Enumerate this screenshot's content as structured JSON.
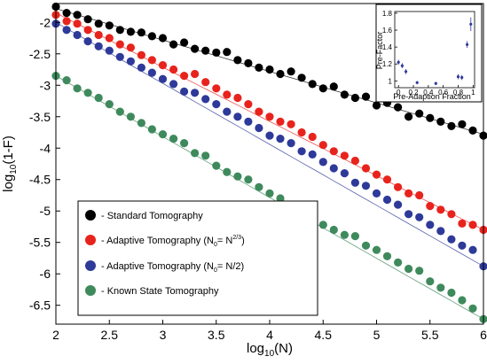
{
  "chart_data": [
    {
      "type": "scatter",
      "xlabel": "log10(N)",
      "ylabel": "log10(1-F)",
      "xlim": [
        2,
        6
      ],
      "ylim": [
        -6.8,
        -1.7
      ],
      "xticks": [
        "2",
        "2.5",
        "3",
        "3.5",
        "4",
        "4.5",
        "5",
        "5.5",
        "6"
      ],
      "yticks": [
        "-2",
        "-2.5",
        "-3",
        "-3.5",
        "-4",
        "-4.5",
        "-5",
        "-5.5",
        "-6",
        "-6.5"
      ],
      "legend_position": "bottom-left",
      "series": [
        {
          "name": "- Standard Tomography",
          "color": "#000000",
          "fit": {
            "x0": 2,
            "y0": -1.78,
            "x1": 6,
            "y1": -3.78
          },
          "x": [
            2.0,
            2.1,
            2.2,
            2.3,
            2.4,
            2.5,
            2.6,
            2.7,
            2.8,
            2.9,
            3.0,
            3.1,
            3.2,
            3.3,
            3.4,
            3.5,
            3.6,
            3.7,
            3.8,
            3.9,
            4.0,
            4.1,
            4.2,
            4.3,
            4.4,
            4.5,
            4.6,
            4.7,
            4.8,
            4.9,
            5.0,
            5.1,
            5.2,
            5.3,
            5.4,
            5.5,
            5.6,
            5.7,
            5.8,
            5.9,
            6.0
          ],
          "y": [
            -1.75,
            -1.85,
            -1.88,
            -1.95,
            -2.02,
            -2.05,
            -2.12,
            -2.15,
            -2.16,
            -2.22,
            -2.25,
            -2.35,
            -2.32,
            -2.42,
            -2.45,
            -2.48,
            -2.47,
            -2.6,
            -2.65,
            -2.72,
            -2.75,
            -2.82,
            -2.78,
            -2.88,
            -2.98,
            -3.05,
            -3.02,
            -3.15,
            -3.2,
            -3.18,
            -3.32,
            -3.28,
            -3.35,
            -3.5,
            -3.45,
            -3.52,
            -3.58,
            -3.65,
            -3.62,
            -3.72,
            -3.8
          ]
        },
        {
          "name": "- Adaptive Tomography (N0= N2/3)",
          "color": "#e8231d",
          "fit": {
            "x0": 2,
            "y0": -1.85,
            "x1": 6,
            "y1": -5.3
          },
          "x": [
            2.0,
            2.1,
            2.2,
            2.3,
            2.4,
            2.5,
            2.6,
            2.7,
            2.8,
            2.9,
            3.0,
            3.1,
            3.2,
            3.3,
            3.4,
            3.5,
            3.6,
            3.7,
            3.8,
            3.9,
            4.0,
            4.1,
            4.2,
            4.3,
            4.4,
            4.5,
            4.6,
            4.7,
            4.8,
            4.9,
            5.0,
            5.1,
            5.2,
            5.3,
            5.4,
            5.5,
            5.6,
            5.7,
            5.8,
            5.9,
            6.0
          ],
          "y": [
            -1.88,
            -1.98,
            -2.02,
            -2.12,
            -2.2,
            -2.25,
            -2.35,
            -2.4,
            -2.52,
            -2.6,
            -2.68,
            -2.75,
            -2.85,
            -2.82,
            -2.95,
            -3.05,
            -3.15,
            -3.2,
            -3.3,
            -3.42,
            -3.5,
            -3.58,
            -3.62,
            -3.75,
            -3.82,
            -3.95,
            -4.05,
            -4.12,
            -4.2,
            -4.32,
            -4.42,
            -4.5,
            -4.62,
            -4.72,
            -4.75,
            -4.92,
            -4.98,
            -5.05,
            -5.2,
            -5.22,
            -5.3
          ]
        },
        {
          "name": "- Adaptive Tomography (N0= N/2)",
          "color": "#2e3a99",
          "fit": {
            "x0": 2,
            "y0": -2.0,
            "x1": 6,
            "y1": -5.88
          },
          "x": [
            2.0,
            2.1,
            2.2,
            2.3,
            2.4,
            2.5,
            2.6,
            2.7,
            2.8,
            2.9,
            3.0,
            3.1,
            3.2,
            3.3,
            3.4,
            3.5,
            3.6,
            3.7,
            3.8,
            3.9,
            4.0,
            4.1,
            4.2,
            4.3,
            4.4,
            4.5,
            4.6,
            4.7,
            4.8,
            4.9,
            5.0,
            5.1,
            5.2,
            5.3,
            5.4,
            5.5,
            5.6,
            5.7,
            5.8,
            5.9,
            6.0
          ],
          "y": [
            -2.02,
            -2.12,
            -2.2,
            -2.3,
            -2.38,
            -2.45,
            -2.55,
            -2.62,
            -2.72,
            -2.8,
            -2.9,
            -2.98,
            -3.1,
            -3.12,
            -3.22,
            -3.3,
            -3.42,
            -3.5,
            -3.58,
            -3.68,
            -3.8,
            -3.85,
            -3.92,
            -4.05,
            -4.1,
            -4.22,
            -4.32,
            -4.4,
            -4.55,
            -4.6,
            -4.72,
            -4.82,
            -4.9,
            -5.05,
            -5.1,
            -5.22,
            -5.32,
            -5.45,
            -5.55,
            -5.62,
            -5.88
          ]
        },
        {
          "name": "- Known State Tomography",
          "color": "#3f8a5c",
          "fit": {
            "x0": 2,
            "y0": -2.85,
            "x1": 6,
            "y1": -6.72
          },
          "x": [
            2.0,
            2.1,
            2.2,
            2.3,
            2.4,
            2.5,
            2.6,
            2.7,
            2.8,
            2.9,
            3.0,
            3.1,
            3.2,
            3.3,
            3.4,
            3.5,
            3.6,
            3.7,
            3.8,
            3.9,
            4.0,
            4.1,
            4.2,
            4.3,
            4.4,
            4.5,
            4.6,
            4.7,
            4.8,
            4.9,
            5.0,
            5.1,
            5.2,
            5.3,
            5.4,
            5.5,
            5.6,
            5.7,
            5.8,
            5.9,
            6.0
          ],
          "y": [
            -2.85,
            -2.92,
            -3.05,
            -3.12,
            -3.2,
            -3.3,
            -3.42,
            -3.5,
            -3.6,
            -3.7,
            -3.78,
            -3.85,
            -3.92,
            -4.08,
            -4.12,
            -4.28,
            -4.38,
            -4.45,
            -4.5,
            -4.62,
            -4.72,
            -4.8,
            -4.9,
            -4.95,
            -5.1,
            -5.22,
            -5.3,
            -5.38,
            -5.4,
            -5.55,
            -5.62,
            -5.72,
            -5.82,
            -5.92,
            -5.95,
            -6.12,
            -6.22,
            -6.3,
            -6.42,
            -6.55,
            -6.72
          ]
        }
      ]
    },
    {
      "type": "scatter",
      "title": "",
      "xlabel": "Pre-Adaption Fraction",
      "ylabel": "Pre-Factor",
      "xlim": [
        -0.05,
        1.02
      ],
      "ylim": [
        0.92,
        1.82
      ],
      "xticks": [
        "0",
        "0.2",
        "0.4",
        "0.6",
        "0.8",
        "1"
      ],
      "yticks": [
        "1",
        "1.2",
        "1.4",
        "1.6",
        "1.8"
      ],
      "legend_position": "none",
      "series": [
        {
          "color": "#2e3a99",
          "x": [
            0.0,
            0.05,
            0.1,
            0.25,
            0.5,
            0.8,
            0.85,
            0.92,
            0.97
          ],
          "y": [
            1.22,
            1.18,
            1.11,
            0.98,
            0.97,
            1.05,
            1.04,
            1.43,
            1.67
          ],
          "err": [
            0.03,
            0.03,
            0.03,
            0.02,
            0.02,
            0.03,
            0.03,
            0.04,
            0.08
          ]
        }
      ]
    }
  ],
  "labels": {
    "ylabel_main": "log",
    "ylabel_sub": "10",
    "ylabel_rest": "(1-F)",
    "xlabel_main": "log",
    "xlabel_sub": "10",
    "xlabel_rest": "(N)",
    "legend": [
      {
        "text": "- Standard Tomography",
        "sup": "",
        "tail": ""
      },
      {
        "text": "- Adaptive Tomography (N",
        "sub": "0",
        "mid": "= N",
        "sup": "2/3",
        "tail": ")"
      },
      {
        "text": "- Adaptive Tomography (N",
        "sub": "0",
        "mid": "= N/2)",
        "sup": "",
        "tail": ""
      },
      {
        "text": "- Known State Tomography",
        "sup": "",
        "tail": ""
      }
    ]
  }
}
